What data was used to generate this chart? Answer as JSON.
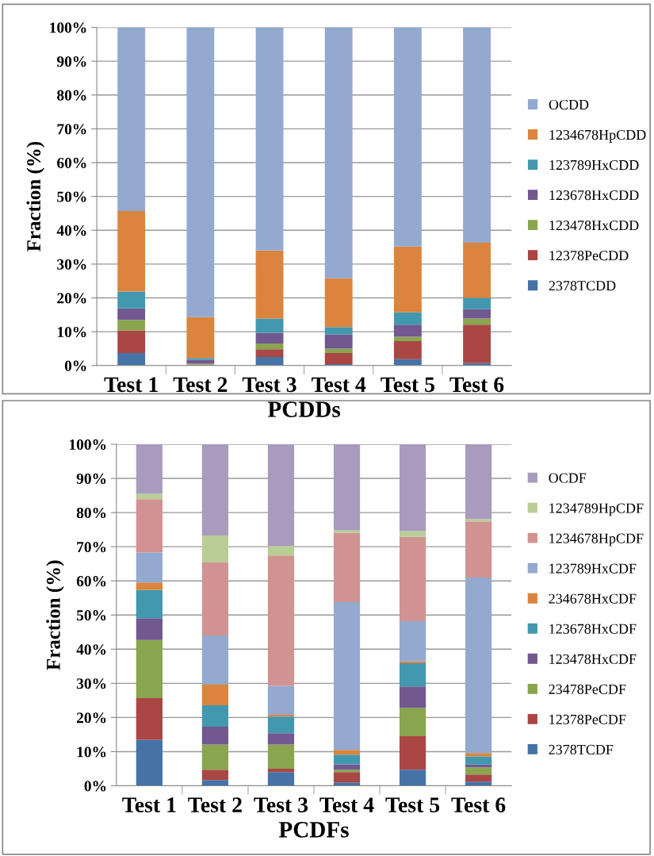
{
  "chart_data": [
    {
      "type": "bar",
      "stacked": true,
      "xlabel": "PCDDs",
      "ylabel": "Fraction (%)",
      "categories": [
        "Test 1",
        "Test 2",
        "Test 3",
        "Test 4",
        "Test 5",
        "Test 6"
      ],
      "ylim": [
        0,
        100
      ],
      "yticks": [
        {
          "value": 0,
          "label": "0%"
        },
        {
          "value": 10,
          "label": "10%"
        },
        {
          "value": 20,
          "label": "20%"
        },
        {
          "value": 30,
          "label": "30%"
        },
        {
          "value": 40,
          "label": "40%"
        },
        {
          "value": 50,
          "label": "50%"
        },
        {
          "value": 60,
          "label": "60%"
        },
        {
          "value": 70,
          "label": "70%"
        },
        {
          "value": 80,
          "label": "80%"
        },
        {
          "value": 90,
          "label": "90%"
        },
        {
          "value": 100,
          "label": "100%"
        }
      ],
      "grid": "y",
      "legend": "right",
      "series": [
        {
          "name": "2378TCDD",
          "color": "#4572a7",
          "values": [
            3.7,
            0.1,
            2.5,
            0.4,
            1.9,
            0.7
          ]
        },
        {
          "name": "12378PeCDD",
          "color": "#aa4643",
          "values": [
            6.7,
            0.2,
            2.3,
            3.3,
            5.3,
            11.4
          ]
        },
        {
          "name": "123478HxCDD",
          "color": "#89a54e",
          "values": [
            3.1,
            0.3,
            1.7,
            1.3,
            1.3,
            1.8
          ]
        },
        {
          "name": "123678HxCDD",
          "color": "#71588f",
          "values": [
            3.4,
            1.1,
            3.2,
            4.2,
            3.6,
            2.8
          ]
        },
        {
          "name": "123789HxCDD",
          "color": "#4198af",
          "values": [
            5.0,
            0.5,
            4.2,
            2.2,
            3.6,
            3.3
          ]
        },
        {
          "name": "1234678HpCDD",
          "color": "#db843d",
          "values": [
            23.8,
            12.1,
            20.1,
            14.4,
            19.5,
            16.3
          ]
        },
        {
          "name": "OCDD",
          "color": "#93a9cf",
          "values": [
            54.3,
            85.7,
            66.0,
            74.2,
            64.8,
            63.7
          ]
        }
      ]
    },
    {
      "type": "bar",
      "stacked": true,
      "xlabel": "PCDFs",
      "ylabel": "Fraction (%)",
      "categories": [
        "Test 1",
        "Test 2",
        "Test 3",
        "Test 4",
        "Test 5",
        "Test 6"
      ],
      "ylim": [
        0,
        100
      ],
      "yticks": [
        {
          "value": 0,
          "label": "0%"
        },
        {
          "value": 10,
          "label": "10%"
        },
        {
          "value": 20,
          "label": "20%"
        },
        {
          "value": 30,
          "label": "30%"
        },
        {
          "value": 40,
          "label": "40%"
        },
        {
          "value": 50,
          "label": "50%"
        },
        {
          "value": 60,
          "label": "60%"
        },
        {
          "value": 70,
          "label": "70%"
        },
        {
          "value": 80,
          "label": "80%"
        },
        {
          "value": 90,
          "label": "90%"
        },
        {
          "value": 100,
          "label": "100%"
        }
      ],
      "grid": "y",
      "legend": "right",
      "series": [
        {
          "name": "2378TCDF",
          "color": "#4572a7",
          "values": [
            13.5,
            1.7,
            4.0,
            1.0,
            4.7,
            1.2
          ]
        },
        {
          "name": "12378PeCDF",
          "color": "#aa4643",
          "values": [
            12.2,
            3.0,
            1.0,
            3.0,
            9.8,
            2.1
          ]
        },
        {
          "name": "23478PeCDF",
          "color": "#89a54e",
          "values": [
            17.0,
            7.4,
            7.1,
            0.7,
            8.3,
            2.1
          ]
        },
        {
          "name": "123478HxCDF",
          "color": "#71588f",
          "values": [
            6.4,
            5.2,
            3.3,
            1.6,
            6.3,
            0.8
          ]
        },
        {
          "name": "123678HxCDF",
          "color": "#4198af",
          "values": [
            8.2,
            6.3,
            4.9,
            2.8,
            6.8,
            2.4
          ]
        },
        {
          "name": "234678HxCDF",
          "color": "#db843d",
          "values": [
            2.2,
            6.0,
            0.5,
            1.4,
            0.6,
            1.0
          ]
        },
        {
          "name": "123789HxCDF",
          "color": "#93a9cf",
          "values": [
            8.8,
            14.4,
            8.5,
            43.3,
            11.7,
            51.4
          ]
        },
        {
          "name": "1234678HpCDF",
          "color": "#d19392",
          "values": [
            15.6,
            21.4,
            38.1,
            20.3,
            24.7,
            16.4
          ]
        },
        {
          "name": "1234789HpCDF",
          "color": "#b9cd96",
          "values": [
            1.6,
            7.9,
            2.8,
            0.7,
            1.7,
            0.7
          ]
        },
        {
          "name": "OCDF",
          "color": "#a99bbd",
          "values": [
            14.5,
            26.7,
            29.8,
            25.2,
            25.4,
            21.9
          ]
        }
      ]
    }
  ]
}
